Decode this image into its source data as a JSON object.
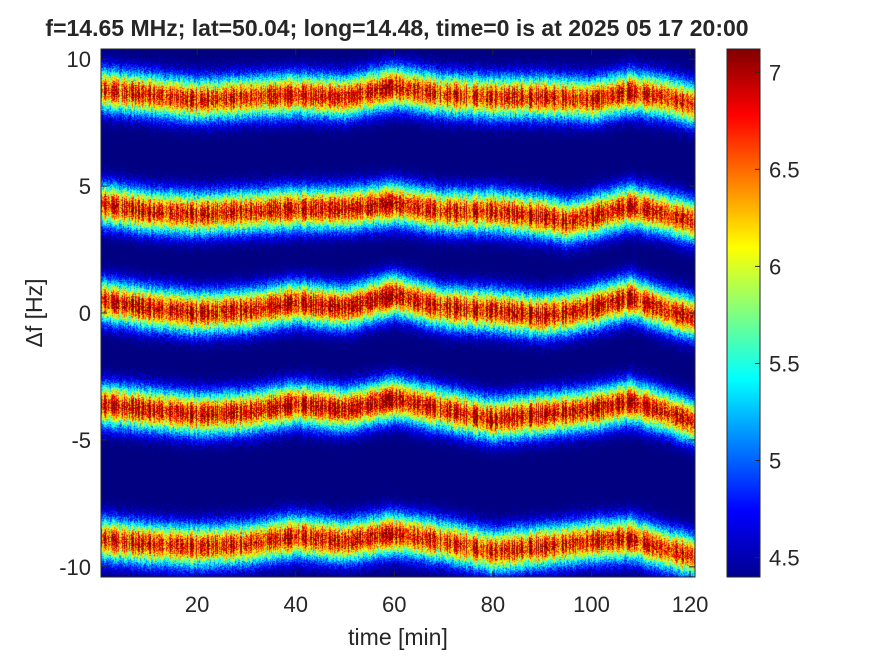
{
  "chart_data": {
    "type": "heatmap",
    "title": "f=14.65 MHz;  lat=50.04; long=14.48, time=0 is at 2025 05 17 20:00",
    "xlabel": "time [min]",
    "ylabel": "Δf [Hz]",
    "xlim": [
      0.5,
      121
    ],
    "ylim": [
      -10.4,
      10.4
    ],
    "xticks": [
      20,
      40,
      60,
      80,
      100,
      120
    ],
    "xtick_labels": [
      "20",
      "40",
      "60",
      "80",
      "100",
      "120"
    ],
    "yticks": [
      -10,
      -5,
      0,
      5,
      10
    ],
    "ytick_labels": [
      "-10",
      "-5",
      "0",
      "5",
      "10"
    ],
    "colorbar": {
      "limits": [
        4.4,
        7.12
      ],
      "ticks": [
        4.5,
        5,
        5.5,
        6,
        6.5,
        7
      ],
      "tick_labels": [
        "4.5",
        "5",
        "5.5",
        "6",
        "6.5",
        "7"
      ],
      "colormap": "jet",
      "background_color": "#00008f"
    },
    "grid": false,
    "bands": [
      {
        "center_hz": 8.6,
        "peak": 7.0,
        "ridge": [
          [
            0,
            8.8
          ],
          [
            10,
            8.6
          ],
          [
            20,
            8.4
          ],
          [
            30,
            8.5
          ],
          [
            40,
            8.6
          ],
          [
            50,
            8.5
          ],
          [
            60,
            8.9
          ],
          [
            70,
            8.6
          ],
          [
            80,
            8.5
          ],
          [
            90,
            8.5
          ],
          [
            100,
            8.4
          ],
          [
            108,
            8.7
          ],
          [
            115,
            8.5
          ],
          [
            121,
            8.2
          ]
        ]
      },
      {
        "center_hz": 4.1,
        "peak": 7.05,
        "ridge": [
          [
            0,
            4.3
          ],
          [
            10,
            4.0
          ],
          [
            20,
            3.9
          ],
          [
            30,
            4.0
          ],
          [
            40,
            4.1
          ],
          [
            50,
            4.1
          ],
          [
            60,
            4.3
          ],
          [
            70,
            4.0
          ],
          [
            80,
            4.0
          ],
          [
            90,
            3.8
          ],
          [
            95,
            3.6
          ],
          [
            100,
            3.8
          ],
          [
            108,
            4.2
          ],
          [
            115,
            3.9
          ],
          [
            121,
            3.6
          ]
        ]
      },
      {
        "center_hz": 0.2,
        "peak": 7.1,
        "ridge": [
          [
            0,
            0.5
          ],
          [
            10,
            0.2
          ],
          [
            20,
            0.0
          ],
          [
            30,
            0.1
          ],
          [
            40,
            0.4
          ],
          [
            50,
            0.2
          ],
          [
            60,
            0.7
          ],
          [
            70,
            0.2
          ],
          [
            80,
            0.1
          ],
          [
            90,
            -0.1
          ],
          [
            95,
            0.0
          ],
          [
            100,
            0.2
          ],
          [
            108,
            0.6
          ],
          [
            115,
            0.1
          ],
          [
            121,
            -0.2
          ]
        ]
      },
      {
        "center_hz": -3.8,
        "peak": 7.1,
        "ridge": [
          [
            0,
            -3.6
          ],
          [
            10,
            -3.8
          ],
          [
            20,
            -4.0
          ],
          [
            30,
            -3.9
          ],
          [
            40,
            -3.6
          ],
          [
            50,
            -3.8
          ],
          [
            60,
            -3.4
          ],
          [
            70,
            -3.8
          ],
          [
            80,
            -4.2
          ],
          [
            90,
            -4.0
          ],
          [
            100,
            -3.8
          ],
          [
            108,
            -3.5
          ],
          [
            115,
            -3.9
          ],
          [
            121,
            -4.3
          ]
        ]
      },
      {
        "center_hz": -9.0,
        "peak": 7.0,
        "ridge": [
          [
            0,
            -8.9
          ],
          [
            10,
            -9.1
          ],
          [
            20,
            -9.2
          ],
          [
            30,
            -9.1
          ],
          [
            40,
            -8.8
          ],
          [
            50,
            -9.0
          ],
          [
            60,
            -8.7
          ],
          [
            70,
            -9.0
          ],
          [
            80,
            -9.4
          ],
          [
            90,
            -9.2
          ],
          [
            100,
            -9.0
          ],
          [
            108,
            -8.9
          ],
          [
            115,
            -9.3
          ],
          [
            121,
            -9.6
          ]
        ]
      }
    ]
  }
}
